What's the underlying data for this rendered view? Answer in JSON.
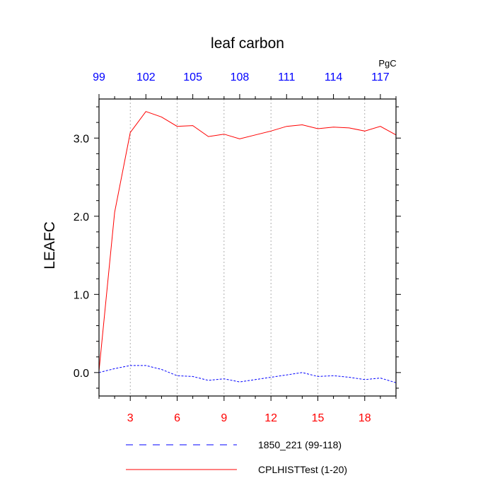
{
  "chart_data": {
    "type": "line",
    "title": "leaf carbon",
    "ylabel": "LEAFC",
    "units": "PgC",
    "ylim": [
      -0.3,
      3.5
    ],
    "y_ticks": [
      0.0,
      1.0,
      2.0,
      3.0
    ],
    "y_tick_labels": [
      "0.0",
      "1.0",
      "2.0",
      "3.0"
    ],
    "bottom_axis": {
      "range": [
        1,
        20
      ],
      "ticks": [
        3,
        6,
        9,
        12,
        15,
        18
      ],
      "tick_labels": [
        "3",
        "6",
        "9",
        "12",
        "15",
        "18"
      ],
      "color": "#ff0000"
    },
    "top_axis": {
      "range": [
        99,
        118
      ],
      "ticks": [
        99,
        102,
        105,
        108,
        111,
        114,
        117
      ],
      "tick_labels": [
        "99",
        "102",
        "105",
        "108",
        "111",
        "114",
        "117"
      ],
      "color": "#0000ff"
    },
    "grid": "vertical dotted lines at bottom axis ticks",
    "series": [
      {
        "name": "CPLHISTTest (1-20)",
        "color": "#ff0000",
        "dash": "solid",
        "axis": "bottom",
        "x": [
          1,
          2,
          3,
          4,
          5,
          6,
          7,
          8,
          9,
          10,
          11,
          12,
          13,
          14,
          15,
          16,
          17,
          18,
          19,
          20
        ],
        "values": [
          0.02,
          2.05,
          3.07,
          3.34,
          3.27,
          3.15,
          3.16,
          3.02,
          3.05,
          2.99,
          3.04,
          3.09,
          3.15,
          3.17,
          3.12,
          3.14,
          3.13,
          3.09,
          3.15,
          3.04
        ]
      },
      {
        "name": "1850_221 (99-118)",
        "color": "#0000ff",
        "dash": "dashed",
        "axis": "top",
        "x": [
          99,
          100,
          101,
          102,
          103,
          104,
          105,
          106,
          107,
          108,
          109,
          110,
          111,
          112,
          113,
          114,
          115,
          116,
          117,
          118
        ],
        "values": [
          0.0,
          0.05,
          0.09,
          0.09,
          0.04,
          -0.04,
          -0.05,
          -0.1,
          -0.08,
          -0.12,
          -0.09,
          -0.06,
          -0.03,
          0.0,
          -0.05,
          -0.04,
          -0.06,
          -0.09,
          -0.07,
          -0.13
        ]
      }
    ],
    "legend": {
      "placement": "bottom",
      "entries": [
        {
          "label": "1850_221 (99-118)",
          "color": "#0000ff",
          "dash": "dashed"
        },
        {
          "label": "CPLHISTTest (1-20)",
          "color": "#ff0000",
          "dash": "solid"
        }
      ]
    }
  }
}
